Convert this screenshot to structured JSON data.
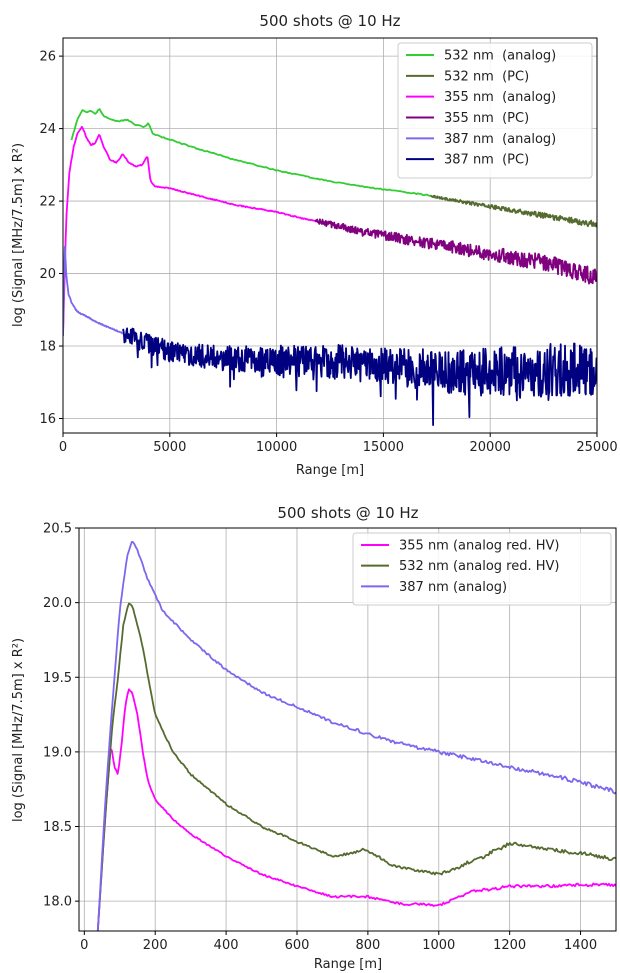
{
  "chart_data": [
    {
      "type": "line",
      "title": "500 shots @ 10 Hz",
      "xlabel": "Range [m]",
      "ylabel": "log (Signal [MHz/7.5m] x R²)",
      "xlim": [
        0,
        25000
      ],
      "ylim": [
        15.6,
        26.5
      ],
      "xticks": [
        0,
        5000,
        10000,
        15000,
        20000,
        25000
      ],
      "yticks": [
        16,
        18,
        20,
        22,
        24,
        26
      ],
      "grid": true,
      "legend_position": "top-right",
      "series": [
        {
          "name": "532 nm  (analog)",
          "color": "#32cd32",
          "x": [
            400,
            700,
            900,
            1100,
            1300,
            1500,
            1700,
            1900,
            2200,
            2600,
            3000,
            3400,
            3800,
            4000,
            4200,
            5000,
            6000,
            8000,
            10000,
            12000,
            14000,
            16000,
            17200
          ],
          "y": [
            23.7,
            24.3,
            24.5,
            24.45,
            24.5,
            24.4,
            24.55,
            24.35,
            24.25,
            24.2,
            24.25,
            24.1,
            24.05,
            24.15,
            23.85,
            23.7,
            23.5,
            23.15,
            22.85,
            22.6,
            22.4,
            22.25,
            22.15
          ]
        },
        {
          "name": "532 nm  (PC)",
          "color": "#556b2f",
          "x": [
            17200,
            18000,
            19000,
            20000,
            21000,
            22000,
            23000,
            24000,
            25000
          ],
          "y": [
            22.15,
            22.05,
            21.95,
            21.85,
            21.75,
            21.65,
            21.55,
            21.45,
            21.35
          ],
          "noise": 0.07
        },
        {
          "name": "355 nm  (analog)",
          "color": "#ff00ff",
          "x": [
            0,
            150,
            300,
            500,
            700,
            900,
            1100,
            1300,
            1500,
            1700,
            1900,
            2200,
            2500,
            2800,
            3100,
            3400,
            3700,
            3950,
            4100,
            4300,
            5000,
            6000,
            7000,
            8000,
            9000,
            10000,
            11000,
            11800
          ],
          "y": [
            18.3,
            21.5,
            22.8,
            23.5,
            23.9,
            24.05,
            23.75,
            23.55,
            23.6,
            23.85,
            23.5,
            23.15,
            23.05,
            23.3,
            23.05,
            22.95,
            23.0,
            23.25,
            22.55,
            22.4,
            22.35,
            22.2,
            22.05,
            21.9,
            21.8,
            21.7,
            21.55,
            21.45
          ]
        },
        {
          "name": "355 nm  (PC)",
          "color": "#800080",
          "x": [
            11800,
            13000,
            14000,
            15000,
            16000,
            17000,
            18000,
            19000,
            20000,
            21000,
            22000,
            23000,
            24000,
            25000
          ],
          "y": [
            21.45,
            21.3,
            21.15,
            21.05,
            20.95,
            20.85,
            20.75,
            20.65,
            20.55,
            20.45,
            20.35,
            20.25,
            20.05,
            19.9
          ],
          "noise": 0.2
        },
        {
          "name": "387 nm  (analog)",
          "color": "#7b68ee",
          "x": [
            0,
            80,
            150,
            250,
            400,
            600,
            800,
            1000,
            1300,
            1600,
            2000,
            2400,
            2800
          ],
          "y": [
            18.3,
            20.8,
            20.0,
            19.45,
            19.2,
            19.0,
            18.9,
            18.85,
            18.75,
            18.65,
            18.55,
            18.45,
            18.35
          ]
        },
        {
          "name": "387 nm  (PC)",
          "color": "#000080",
          "x": [
            2800,
            4000,
            5000,
            6000,
            7000,
            8000,
            9000,
            10000,
            11000,
            12000,
            13000,
            14000,
            15000,
            16000,
            17000,
            18000,
            19000,
            20000,
            21000,
            22000,
            23000,
            24000,
            25000
          ],
          "y": [
            18.35,
            18.05,
            17.85,
            17.75,
            17.7,
            17.65,
            17.6,
            17.6,
            17.6,
            17.6,
            17.55,
            17.5,
            17.45,
            17.4,
            17.35,
            17.3,
            17.25,
            17.3,
            17.3,
            17.3,
            17.35,
            17.35,
            17.4
          ],
          "noise": 0.6
        }
      ]
    },
    {
      "type": "line",
      "title": "500 shots @ 10 Hz",
      "xlabel": "Range [m]",
      "ylabel": "log (Signal [MHz/7.5m] x R²)",
      "xlim": [
        -15,
        1500
      ],
      "ylim": [
        17.8,
        20.5
      ],
      "xticks": [
        0,
        200,
        400,
        600,
        800,
        1000,
        1200,
        1400
      ],
      "yticks": [
        18.0,
        18.5,
        19.0,
        19.5,
        20.0,
        20.5
      ],
      "grid": true,
      "legend_position": "top-right",
      "series": [
        {
          "name": "355 nm (analog red. HV)",
          "color": "#ff00ff",
          "x": [
            38,
            60,
            75,
            85,
            95,
            105,
            115,
            125,
            135,
            150,
            165,
            180,
            200,
            250,
            300,
            400,
            500,
            600,
            700,
            800,
            850,
            900,
            950,
            1000,
            1050,
            1100,
            1150,
            1200,
            1300,
            1400,
            1500
          ],
          "y": [
            17.8,
            18.6,
            19.05,
            18.9,
            18.85,
            19.05,
            19.3,
            19.42,
            19.4,
            19.25,
            19.0,
            18.8,
            18.68,
            18.55,
            18.45,
            18.3,
            18.18,
            18.1,
            18.03,
            18.03,
            18.0,
            17.98,
            17.98,
            17.97,
            18.02,
            18.07,
            18.08,
            18.1,
            18.1,
            18.11,
            18.11
          ],
          "noise": 0.008
        },
        {
          "name": "532 nm (analog red. HV)",
          "color": "#556b2f",
          "x": [
            38,
            60,
            80,
            95,
            110,
            125,
            135,
            150,
            165,
            180,
            200,
            250,
            300,
            400,
            500,
            600,
            700,
            750,
            790,
            800,
            830,
            860,
            900,
            950,
            1000,
            1050,
            1100,
            1130,
            1150,
            1180,
            1200,
            1250,
            1300,
            1400,
            1500
          ],
          "y": [
            17.8,
            18.6,
            19.2,
            19.5,
            19.85,
            20.0,
            19.98,
            19.85,
            19.7,
            19.5,
            19.25,
            19.0,
            18.85,
            18.65,
            18.5,
            18.4,
            18.3,
            18.32,
            18.35,
            18.33,
            18.3,
            18.25,
            18.22,
            18.2,
            18.18,
            18.22,
            18.28,
            18.3,
            18.33,
            18.36,
            18.39,
            18.37,
            18.35,
            18.32,
            18.28
          ],
          "noise": 0.01
        },
        {
          "name": "387 nm (analog)",
          "color": "#7b68ee",
          "x": [
            38,
            60,
            80,
            100,
            120,
            135,
            150,
            180,
            220,
            300,
            400,
            500,
            600,
            700,
            800,
            900,
            1000,
            1100,
            1200,
            1300,
            1400,
            1500
          ],
          "y": [
            17.8,
            18.7,
            19.35,
            19.95,
            20.3,
            20.42,
            20.35,
            20.15,
            19.95,
            19.75,
            19.55,
            19.4,
            19.3,
            19.2,
            19.12,
            19.05,
            19.0,
            18.95,
            18.9,
            18.85,
            18.8,
            18.73
          ],
          "noise": 0.012
        }
      ]
    }
  ]
}
